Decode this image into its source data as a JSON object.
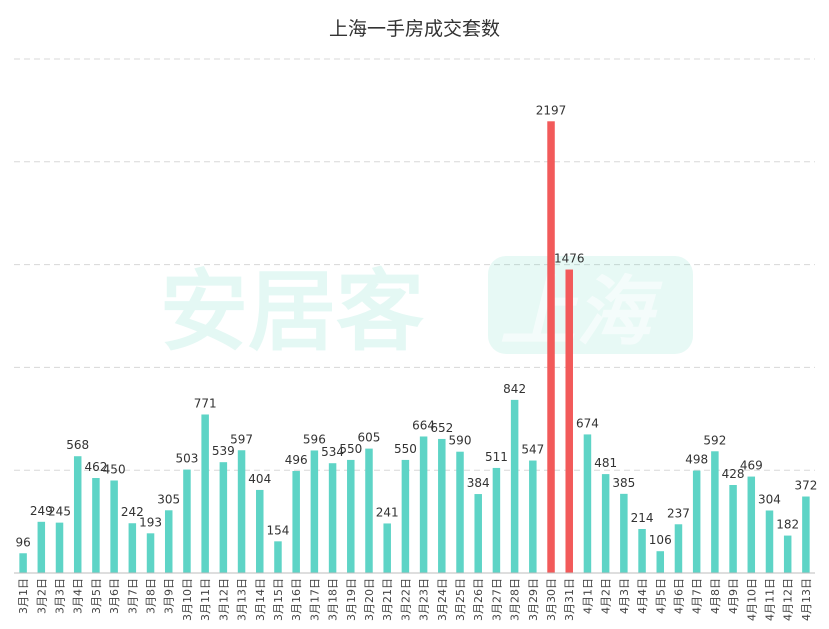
{
  "title": "上海一手房成交套数",
  "colors": {
    "normal": "#5ed4c6",
    "highlight": "#f25a5a",
    "grid": "#d8d8d8",
    "watermark": "#58d2b8"
  },
  "watermark": {
    "text": "安居客",
    "badge": "上海"
  },
  "chart_data": {
    "type": "bar",
    "title": "上海一手房成交套数",
    "xlabel": "",
    "ylabel": "",
    "ylim": [
      0,
      2500
    ],
    "grid": true,
    "legend": "none",
    "categories": [
      "3月1日",
      "3月2日",
      "3月3日",
      "3月4日",
      "3月5日",
      "3月6日",
      "3月7日",
      "3月8日",
      "3月9日",
      "3月10日",
      "3月11日",
      "3月12日",
      "3月13日",
      "3月14日",
      "3月15日",
      "3月16日",
      "3月17日",
      "3月18日",
      "3月19日",
      "3月20日",
      "3月21日",
      "3月22日",
      "3月23日",
      "3月24日",
      "3月25日",
      "3月26日",
      "3月27日",
      "3月28日",
      "3月29日",
      "3月30日",
      "3月31日",
      "4月1日",
      "4月2日",
      "4月3日",
      "4月4日",
      "4月5日",
      "4月6日",
      "4月7日",
      "4月8日",
      "4月9日",
      "4月10日",
      "4月11日",
      "4月12日",
      "4月13日"
    ],
    "values": [
      96,
      249,
      245,
      568,
      462,
      450,
      242,
      193,
      305,
      503,
      771,
      539,
      597,
      404,
      154,
      496,
      596,
      534,
      550,
      605,
      241,
      550,
      664,
      652,
      590,
      384,
      511,
      842,
      547,
      2197,
      1476,
      674,
      481,
      385,
      214,
      106,
      237,
      498,
      592,
      428,
      469,
      304,
      182,
      372
    ],
    "highlight_categories": [
      "3月30日",
      "3月31日"
    ]
  }
}
